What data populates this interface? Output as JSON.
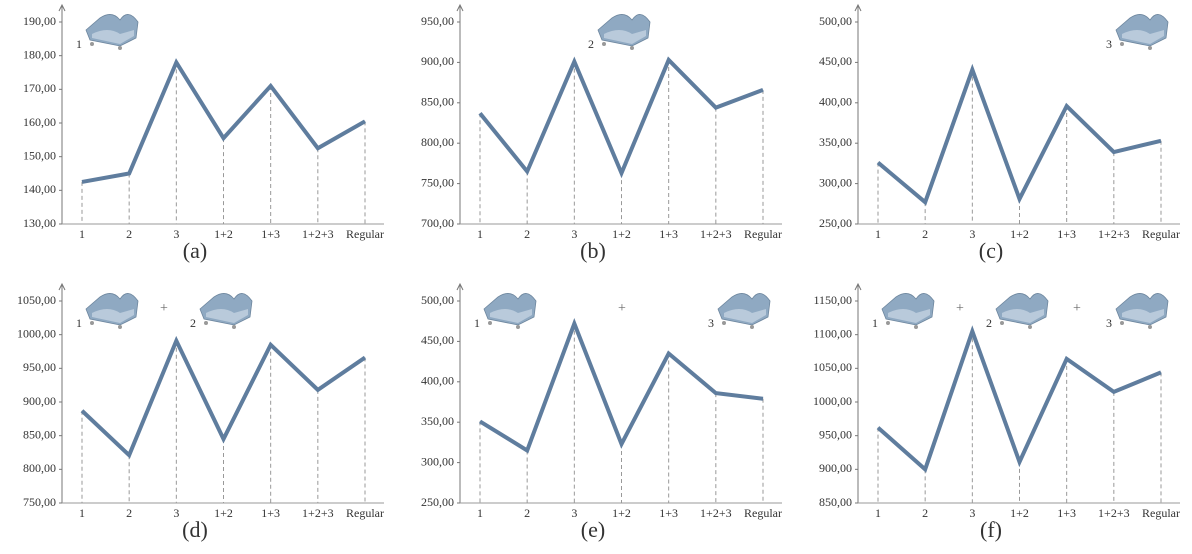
{
  "chart_data": [
    {
      "type": "line",
      "caption": "(a)",
      "annotations": [
        "1"
      ],
      "categories": [
        "1",
        "2",
        "3",
        "1+2",
        "1+3",
        "1+2+3",
        "Regular"
      ],
      "color": "#5f7d9e",
      "values": [
        142.5,
        145,
        178,
        155.5,
        171,
        152.5,
        160.5
      ],
      "ylim": [
        130,
        190
      ],
      "yticks": [
        {
          "value": 130,
          "label": "130,00"
        },
        {
          "value": 140,
          "label": "140,00"
        },
        {
          "value": 150,
          "label": "150,00"
        },
        {
          "value": 160,
          "label": "160,00"
        },
        {
          "value": 170,
          "label": "170,00"
        },
        {
          "value": 180,
          "label": "180,00"
        },
        {
          "value": 190,
          "label": "190,00"
        }
      ]
    },
    {
      "type": "line",
      "caption": "(b)",
      "annotations": [
        "2"
      ],
      "categories": [
        "1",
        "2",
        "3",
        "1+2",
        "1+3",
        "1+2+3",
        "Regular"
      ],
      "color": "#5f7d9e",
      "values": [
        837,
        765,
        901,
        763,
        903,
        844,
        866
      ],
      "ylim": [
        700,
        950
      ],
      "yticks": [
        {
          "value": 700,
          "label": "700,00"
        },
        {
          "value": 750,
          "label": "750,00"
        },
        {
          "value": 800,
          "label": "800,00"
        },
        {
          "value": 850,
          "label": "850,00"
        },
        {
          "value": 900,
          "label": "900,00"
        },
        {
          "value": 950,
          "label": "950,00"
        }
      ]
    },
    {
      "type": "line",
      "caption": "(c)",
      "annotations": [
        "3"
      ],
      "categories": [
        "1",
        "2",
        "3",
        "1+2",
        "1+3",
        "1+2+3",
        "Regular"
      ],
      "color": "#5f7d9e",
      "values": [
        326,
        277,
        441,
        281,
        396,
        339,
        353
      ],
      "ylim": [
        250,
        500
      ],
      "yticks": [
        {
          "value": 250,
          "label": "250,00"
        },
        {
          "value": 300,
          "label": "300,00"
        },
        {
          "value": 350,
          "label": "350,00"
        },
        {
          "value": 400,
          "label": "400,00"
        },
        {
          "value": 450,
          "label": "450,00"
        },
        {
          "value": 500,
          "label": "500,00"
        }
      ]
    },
    {
      "type": "line",
      "caption": "(d)",
      "annotations": [
        "1",
        "+",
        "2"
      ],
      "categories": [
        "1",
        "2",
        "3",
        "1+2",
        "1+3",
        "1+2+3",
        "Regular"
      ],
      "color": "#5f7d9e",
      "values": [
        887,
        821,
        991,
        845,
        985,
        918,
        966
      ],
      "ylim": [
        750,
        1050
      ],
      "yticks": [
        {
          "value": 750,
          "label": "750,00"
        },
        {
          "value": 800,
          "label": "800,00"
        },
        {
          "value": 850,
          "label": "850,00"
        },
        {
          "value": 900,
          "label": "900,00"
        },
        {
          "value": 950,
          "label": "950,00"
        },
        {
          "value": 1000,
          "label": "1000,00"
        },
        {
          "value": 1050,
          "label": "1050,00"
        }
      ]
    },
    {
      "type": "line",
      "caption": "(e)",
      "annotations": [
        "1",
        "+",
        "3"
      ],
      "categories": [
        "1",
        "2",
        "3",
        "1+2",
        "1+3",
        "1+2+3",
        "Regular"
      ],
      "color": "#5f7d9e",
      "values": [
        351,
        315,
        472,
        323,
        435,
        386,
        379
      ],
      "ylim": [
        250,
        500
      ],
      "yticks": [
        {
          "value": 250,
          "label": "250,00"
        },
        {
          "value": 300,
          "label": "300,00"
        },
        {
          "value": 350,
          "label": "350,00"
        },
        {
          "value": 400,
          "label": "400,00"
        },
        {
          "value": 450,
          "label": "450,00"
        },
        {
          "value": 500,
          "label": "500,00"
        }
      ]
    },
    {
      "type": "line",
      "caption": "(f)",
      "annotations": [
        "1",
        "+",
        "2",
        "+",
        "3"
      ],
      "categories": [
        "1",
        "2",
        "3",
        "1+2",
        "1+3",
        "1+2+3",
        "Regular"
      ],
      "color": "#5f7d9e",
      "values": [
        962,
        900,
        1105,
        911,
        1064,
        1015,
        1044
      ],
      "ylim": [
        850,
        1150
      ],
      "yticks": [
        {
          "value": 850,
          "label": "850,00"
        },
        {
          "value": 900,
          "label": "900,00"
        },
        {
          "value": 950,
          "label": "950,00"
        },
        {
          "value": 1000,
          "label": "1000,00"
        },
        {
          "value": 1050,
          "label": "1050,00"
        },
        {
          "value": 1100,
          "label": "1100,00"
        },
        {
          "value": 1150,
          "label": "1150,00"
        }
      ]
    }
  ]
}
